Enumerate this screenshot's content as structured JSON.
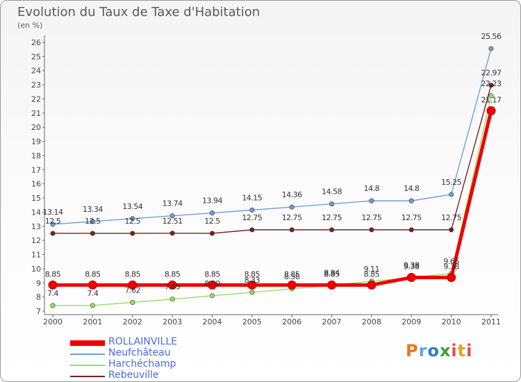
{
  "title": "Evolution du Taux de Taxe d'Habitation",
  "unit_label": "(en %)",
  "logo_text": "Proxiti",
  "chart_data": {
    "type": "line",
    "title": "Evolution du Taux de Taxe d'Habitation",
    "ylabel": "(en %)",
    "x": [
      "2000",
      "2001",
      "2002",
      "2003",
      "2004",
      "2005",
      "2006",
      "2007",
      "2008",
      "2009",
      "2010",
      "2011"
    ],
    "y_ticks": [
      7,
      8,
      9,
      10,
      11,
      12,
      13,
      14,
      15,
      16,
      17,
      18,
      19,
      20,
      21,
      22,
      23,
      24,
      25,
      26
    ],
    "ylim": [
      7,
      26
    ],
    "grid": false,
    "legend_position": "bottom-left",
    "series": [
      {
        "name": "ROLLAINVILLE",
        "color": "#ee0000",
        "values": [
          8.85,
          8.85,
          8.85,
          8.85,
          8.85,
          8.85,
          8.85,
          8.85,
          8.85,
          9.38,
          9.38,
          21.17
        ],
        "labels": [
          "8.85",
          "8.85",
          "8.85",
          "8.85",
          "8.85",
          "8.85",
          "8.85",
          "8.85",
          "8.85",
          "9.38",
          "9.38",
          "21.17"
        ]
      },
      {
        "name": "Neufchâteau",
        "color": "#6fa0d8",
        "values": [
          13.14,
          13.34,
          13.54,
          13.74,
          13.94,
          14.15,
          14.36,
          14.58,
          14.8,
          14.8,
          15.25,
          25.56
        ],
        "labels": [
          "13.14",
          "13.34",
          "13.54",
          "13.74",
          "13.94",
          "14.15",
          "14.36",
          "14.58",
          "14.8",
          "14.8",
          "15.25",
          "25.56"
        ]
      },
      {
        "name": "Harchéchamp",
        "color": "#99dd66",
        "values": [
          7.4,
          7.4,
          7.62,
          7.85,
          8.09,
          8.33,
          8.58,
          8.84,
          9.11,
          9.38,
          9.66,
          22.23
        ],
        "labels": [
          "7.4",
          "7.4",
          "7.62",
          "7.85",
          "8.09",
          "8.33",
          "8.58",
          "8.84",
          "9.11",
          "9.38",
          "9.66",
          "22.23"
        ]
      },
      {
        "name": "Rebeuville",
        "color": "#7a2020",
        "values": [
          12.5,
          12.5,
          12.5,
          12.51,
          12.5,
          12.75,
          12.75,
          12.75,
          12.75,
          12.75,
          12.75,
          22.97
        ],
        "labels": [
          "12.5",
          "12.5",
          "12.5",
          "12.51",
          "12.5",
          "12.75",
          "12.75",
          "12.75",
          "12.75",
          "12.75",
          "12.75",
          "22.97"
        ]
      }
    ]
  }
}
